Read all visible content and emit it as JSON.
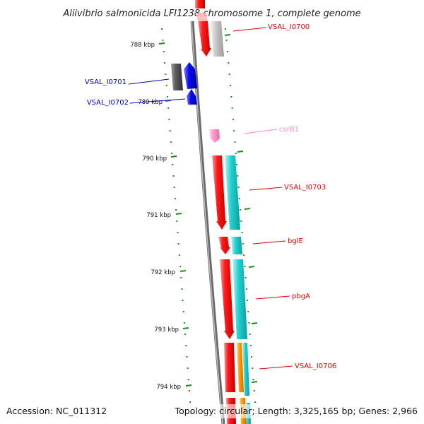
{
  "title": "Aliivibrio salmonicida LFI1238 chromosome 1, complete genome",
  "footer": {
    "accession": "Accession: NC_011312",
    "topology": "Topology: circular; Length: 3,325,165 bp; Genes: 2,966"
  },
  "colors": {
    "backbone": "#8a8a8a",
    "tick": "#1f8a1f",
    "red": "#ff0000",
    "cyan": "#22d0d0",
    "blue": "#0000ee",
    "gray": "#c8c8c8",
    "darkgray": "#5a5a5a",
    "pink": "#ff99cc",
    "orange": "#ff9900"
  },
  "ticks": [
    {
      "label": "788 kbp"
    },
    {
      "label": "789 kbp"
    },
    {
      "label": "790 kbp"
    },
    {
      "label": "791 kbp"
    },
    {
      "label": "792 kbp"
    },
    {
      "label": "793 kbp"
    },
    {
      "label": "794 kbp"
    }
  ],
  "gene_labels": [
    {
      "text": "VSAL_I0700",
      "color": "#dd0000"
    },
    {
      "text": "VSAL_I0701",
      "color": "#0000cc"
    },
    {
      "text": "VSAL_I0702",
      "color": "#0000cc"
    },
    {
      "text": "csrB1",
      "color": "#ff88bb"
    },
    {
      "text": "VSAL_I0703",
      "color": "#dd0000"
    },
    {
      "text": "bglE",
      "color": "#dd0000"
    },
    {
      "text": "pbgA",
      "color": "#dd0000"
    },
    {
      "text": "VSAL_I0706",
      "color": "#dd0000"
    }
  ]
}
